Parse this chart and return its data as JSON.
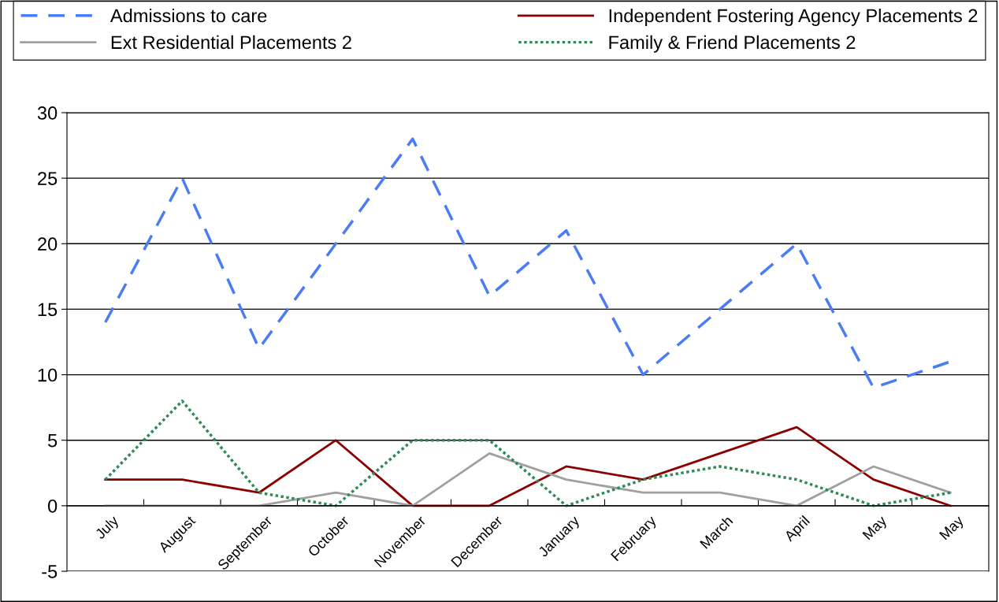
{
  "chart_data": {
    "type": "line",
    "categories": [
      "July",
      "August",
      "September",
      "October",
      "November",
      "December",
      "January",
      "February",
      "March",
      "April",
      "May",
      "May"
    ],
    "series": [
      {
        "name": "Admissions to care",
        "color": "#4a7cf5",
        "line_style": "dashed",
        "values": [
          14,
          25,
          12,
          20,
          28,
          16,
          21,
          10,
          15,
          20,
          9,
          11
        ]
      },
      {
        "name": "Independent Fostering Agency Placements 2",
        "color": "#8b0000",
        "line_style": "solid",
        "values": [
          2,
          2,
          1,
          5,
          0,
          0,
          3,
          2,
          4,
          6,
          2,
          0
        ]
      },
      {
        "name": "Ext Residential Placements 2",
        "color": "#a0a0a0",
        "line_style": "solid",
        "values": [
          0,
          0,
          0,
          1,
          0,
          4,
          2,
          1,
          1,
          0,
          3,
          1
        ]
      },
      {
        "name": "Family & Friend Placements 2",
        "color": "#2e8b57",
        "line_style": "dotted",
        "values": [
          2,
          8,
          1,
          0,
          5,
          5,
          0,
          2,
          3,
          2,
          0,
          1
        ]
      }
    ],
    "ylim": [
      -5,
      30
    ],
    "yticks": [
      -5,
      0,
      5,
      10,
      15,
      20,
      25,
      30
    ],
    "grid": "y",
    "legend": "top",
    "marker": "none"
  }
}
